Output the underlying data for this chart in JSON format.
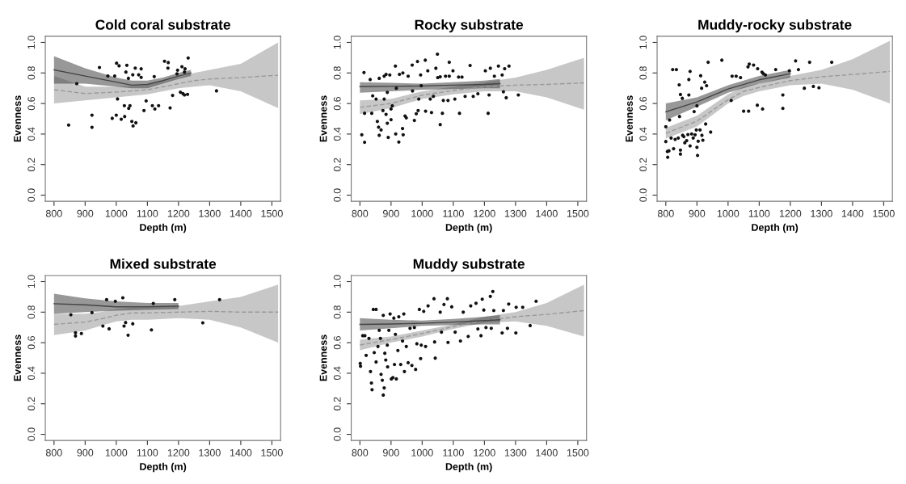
{
  "chart_data": [
    {
      "type": "scatter",
      "title": "Cold coral substrate",
      "xlabel": "Depth (m)",
      "ylabel": "Evenness",
      "xlim": [
        772,
        1528
      ],
      "ylim": [
        -0.04,
        1.04
      ],
      "xticks": [
        800,
        900,
        1000,
        1100,
        1200,
        1300,
        1400,
        1500
      ],
      "yticks": [
        {
          "value": 0,
          "label": "0.0"
        },
        {
          "value": 0.2,
          "label": "0.2"
        },
        {
          "value": 0.4,
          "label": "0.4"
        },
        {
          "value": 0.6,
          "label": "0.6"
        },
        {
          "value": 0.8,
          "label": "0.8"
        },
        {
          "value": 1,
          "label": "1.0"
        }
      ],
      "grid": false,
      "series": [
        {
          "type": "line",
          "line_style": "dashed",
          "color": "#999999",
          "x": [
            800,
            900,
            1000,
            1100,
            1200,
            1250,
            1300,
            1400,
            1520
          ],
          "values": [
            0.69,
            0.665,
            0.675,
            0.69,
            0.73,
            0.75,
            0.76,
            0.77,
            0.785
          ],
          "lower": [
            0.6,
            0.62,
            0.64,
            0.66,
            0.7,
            0.71,
            0.72,
            0.68,
            0.57
          ],
          "upper": [
            0.78,
            0.71,
            0.71,
            0.72,
            0.77,
            0.8,
            0.82,
            0.86,
            1.0
          ]
        },
        {
          "type": "line",
          "line_style": "solid",
          "color": "#444444",
          "x": [
            800,
            900,
            1000,
            1050,
            1100,
            1150,
            1200,
            1240
          ],
          "values": [
            0.82,
            0.78,
            0.74,
            0.72,
            0.725,
            0.75,
            0.78,
            0.8
          ],
          "lower": [
            0.73,
            0.73,
            0.71,
            0.7,
            0.7,
            0.73,
            0.76,
            0.78
          ],
          "upper": [
            0.91,
            0.83,
            0.77,
            0.75,
            0.75,
            0.77,
            0.8,
            0.82
          ]
        },
        {
          "type": "scatter",
          "marker": "circle",
          "color": "#111111",
          "x": [
            847,
            946,
            973,
            995,
            1001,
            1009,
            1034,
            1031,
            1061,
            1053,
            1039,
            1072,
            1080,
            1080,
            1122,
            1155,
            1167,
            1166,
            1197,
            1195,
            1211,
            1221,
            1219,
            1231,
            1206,
            1214,
            1219,
            1229,
            1322,
            873,
            922,
            922,
            987,
            1000,
            1004,
            1016,
            1027,
            1026,
            1040,
            1044,
            1050,
            1054,
            1063,
            1089,
            1096,
            1116,
            1124,
            1136,
            1173,
            1181
          ],
          "values": [
            0.459,
            0.836,
            0.78,
            0.78,
            0.864,
            0.847,
            0.85,
            0.806,
            0.832,
            0.788,
            0.765,
            0.788,
            0.827,
            0.771,
            0.776,
            0.877,
            0.868,
            0.832,
            0.818,
            0.794,
            0.841,
            0.827,
            0.806,
            0.898,
            0.674,
            0.665,
            0.656,
            0.66,
            0.683,
            0.73,
            0.524,
            0.444,
            0.503,
            0.524,
            0.63,
            0.497,
            0.515,
            0.586,
            0.568,
            0.586,
            0.483,
            0.453,
            0.474,
            0.554,
            0.617,
            0.586,
            0.564,
            0.586,
            0.571,
            0.653
          ]
        }
      ]
    },
    {
      "type": "scatter",
      "title": "Rocky substrate",
      "xlabel": "Depth (m)",
      "ylabel": "Evenness",
      "xlim": [
        772,
        1528
      ],
      "ylim": [
        -0.04,
        1.04
      ],
      "xticks": [
        800,
        900,
        1000,
        1100,
        1200,
        1300,
        1400,
        1500
      ],
      "yticks": [
        {
          "value": 0,
          "label": "0.0"
        },
        {
          "value": 0.2,
          "label": "0.2"
        },
        {
          "value": 0.4,
          "label": "0.4"
        },
        {
          "value": 0.6,
          "label": "0.6"
        },
        {
          "value": 0.8,
          "label": "0.8"
        },
        {
          "value": 1,
          "label": "1.0"
        }
      ],
      "grid": false,
      "series": [
        {
          "type": "line",
          "line_style": "dashed",
          "color": "#999999",
          "x": [
            800,
            900,
            1000,
            1100,
            1200,
            1300,
            1400,
            1520
          ],
          "values": [
            0.575,
            0.6,
            0.655,
            0.685,
            0.71,
            0.72,
            0.725,
            0.735
          ],
          "lower": [
            0.53,
            0.57,
            0.63,
            0.66,
            0.68,
            0.68,
            0.64,
            0.56
          ],
          "upper": [
            0.62,
            0.63,
            0.68,
            0.71,
            0.74,
            0.77,
            0.82,
            0.9
          ]
        },
        {
          "type": "line",
          "line_style": "solid",
          "color": "#444444",
          "x": [
            800,
            900,
            1000,
            1100,
            1200,
            1250
          ],
          "values": [
            0.71,
            0.712,
            0.715,
            0.72,
            0.725,
            0.73
          ],
          "lower": [
            0.67,
            0.68,
            0.69,
            0.695,
            0.7,
            0.7
          ],
          "upper": [
            0.74,
            0.735,
            0.73,
            0.74,
            0.75,
            0.76
          ]
        },
        {
          "type": "scatter",
          "marker": "circle",
          "color": "#111111",
          "x": [
            813,
            833,
            806,
            815,
            815,
            838,
            841,
            852,
            856,
            860,
            862,
            868,
            862,
            878,
            884,
            896,
            888,
            878,
            874,
            884,
            888,
            891,
            900,
            900,
            904,
            914,
            917,
            915,
            925,
            927,
            938,
            937,
            939,
            945,
            949,
            955,
            968,
            969,
            975,
            981,
            985,
            987,
            989,
            995,
            997,
            1010,
            1011,
            1018,
            1026,
            1030,
            1036,
            1044,
            1049,
            1050,
            1058,
            1058,
            1065,
            1068,
            1075,
            1087,
            1087,
            1083,
            1099,
            1105,
            1117,
            1120,
            1128,
            1138,
            1154,
            1164,
            1179,
            1203,
            1212,
            1219,
            1215,
            1232,
            1245,
            1257,
            1261,
            1265,
            1270,
            1279,
            1309
          ],
          "values": [
            0.803,
            0.757,
            0.395,
            0.346,
            0.536,
            0.536,
            0.65,
            0.629,
            0.483,
            0.445,
            0.392,
            0.427,
            0.765,
            0.779,
            0.791,
            0.787,
            0.673,
            0.629,
            0.554,
            0.529,
            0.471,
            0.378,
            0.494,
            0.564,
            0.585,
            0.845,
            0.7,
            0.401,
            0.348,
            0.791,
            0.8,
            0.436,
            0.395,
            0.518,
            0.506,
            0.779,
            0.852,
            0.682,
            0.489,
            0.533,
            0.875,
            0.554,
            0.629,
            0.787,
            0.717,
            0.884,
            0.55,
            0.814,
            0.629,
            0.541,
            0.647,
            0.831,
            0.923,
            0.77,
            0.775,
            0.462,
            0.536,
            0.62,
            0.779,
            0.87,
            0.779,
            0.62,
            0.814,
            0.629,
            0.773,
            0.536,
            0.773,
            0.647,
            0.849,
            0.647,
            0.664,
            0.814,
            0.536,
            0.831,
            0.656,
            0.779,
            0.845,
            0.787,
            0.677,
            0.828,
            0.638,
            0.845,
            0.656
          ]
        }
      ]
    },
    {
      "type": "scatter",
      "title": "Muddy-rocky substrate",
      "xlabel": "Depth (m)",
      "ylabel": "Evenness",
      "xlim": [
        772,
        1528
      ],
      "ylim": [
        -0.04,
        1.04
      ],
      "xticks": [
        800,
        900,
        1000,
        1100,
        1200,
        1300,
        1400,
        1500
      ],
      "yticks": [
        {
          "value": 0,
          "label": "0.0"
        },
        {
          "value": 0.2,
          "label": "0.2"
        },
        {
          "value": 0.4,
          "label": "0.4"
        },
        {
          "value": 0.6,
          "label": "0.6"
        },
        {
          "value": 0.8,
          "label": "0.8"
        },
        {
          "value": 1,
          "label": "1.0"
        }
      ],
      "grid": false,
      "series": [
        {
          "type": "line",
          "line_style": "dashed",
          "color": "#999999",
          "x": [
            800,
            900,
            1000,
            1050,
            1100,
            1200,
            1300,
            1400,
            1520
          ],
          "values": [
            0.405,
            0.485,
            0.625,
            0.68,
            0.705,
            0.75,
            0.775,
            0.79,
            0.81
          ],
          "lower": [
            0.37,
            0.45,
            0.6,
            0.65,
            0.68,
            0.72,
            0.73,
            0.69,
            0.6
          ],
          "upper": [
            0.44,
            0.52,
            0.66,
            0.71,
            0.73,
            0.78,
            0.82,
            0.89,
            1.01
          ]
        },
        {
          "type": "line",
          "line_style": "solid",
          "color": "#444444",
          "x": [
            800,
            900,
            1000,
            1100,
            1200
          ],
          "values": [
            0.545,
            0.61,
            0.695,
            0.755,
            0.795
          ],
          "lower": [
            0.49,
            0.58,
            0.67,
            0.73,
            0.77
          ],
          "upper": [
            0.6,
            0.64,
            0.72,
            0.78,
            0.82
          ]
        },
        {
          "type": "scatter",
          "marker": "circle",
          "color": "#111111",
          "x": [
            800,
            800,
            805,
            806,
            810,
            812,
            817,
            822,
            825,
            834,
            830,
            840,
            843,
            844,
            847,
            847,
            847,
            853,
            854,
            858,
            861,
            867,
            871,
            874,
            878,
            874,
            878,
            883,
            888,
            891,
            894,
            898,
            900,
            900,
            902,
            904,
            910,
            912,
            915,
            916,
            919,
            925,
            928,
            931,
            936,
            944,
            980,
            1013,
            1026,
            1040,
            1010,
            1050,
            1066,
            1064,
            1068,
            1082,
            1095,
            1094,
            1109,
            1113,
            1111,
            1120,
            1153,
            1176,
            1176,
            1197,
            1217,
            1226,
            1262,
            1245,
            1274,
            1292,
            1333
          ],
          "values": [
            0.448,
            0.351,
            0.286,
            0.248,
            0.29,
            0.492,
            0.374,
            0.822,
            0.304,
            0.822,
            0.365,
            0.374,
            0.722,
            0.515,
            0.659,
            0.295,
            0.269,
            0.634,
            0.392,
            0.383,
            0.343,
            0.357,
            0.397,
            0.757,
            0.81,
            0.656,
            0.322,
            0.401,
            0.374,
            0.547,
            0.395,
            0.427,
            0.585,
            0.313,
            0.26,
            0.353,
            0.427,
            0.782,
            0.7,
            0.392,
            0.36,
            0.74,
            0.466,
            0.717,
            0.87,
            0.413,
            0.884,
            0.779,
            0.779,
            0.77,
            0.62,
            0.55,
            0.55,
            0.84,
            0.858,
            0.852,
            0.828,
            0.589,
            0.805,
            0.796,
            0.564,
            0.787,
            0.822,
            0.656,
            0.568,
            0.814,
            0.879,
            0.822,
            0.87,
            0.7,
            0.712,
            0.703,
            0.87
          ]
        }
      ]
    },
    {
      "type": "scatter",
      "title": "Mixed substrate",
      "xlabel": "Depth (m)",
      "ylabel": "Evenness",
      "xlim": [
        772,
        1528
      ],
      "ylim": [
        -0.04,
        1.04
      ],
      "xticks": [
        800,
        900,
        1000,
        1100,
        1200,
        1300,
        1400,
        1500
      ],
      "yticks": [
        {
          "value": 0,
          "label": "0.0"
        },
        {
          "value": 0.2,
          "label": "0.2"
        },
        {
          "value": 0.4,
          "label": "0.4"
        },
        {
          "value": 0.6,
          "label": "0.6"
        },
        {
          "value": 0.8,
          "label": "0.8"
        },
        {
          "value": 1,
          "label": "1.0"
        }
      ],
      "grid": false,
      "series": [
        {
          "type": "line",
          "line_style": "dashed",
          "color": "#999999",
          "x": [
            800,
            900,
            950,
            1000,
            1050,
            1100,
            1200,
            1300,
            1400,
            1520
          ],
          "values": [
            0.72,
            0.735,
            0.755,
            0.78,
            0.795,
            0.795,
            0.8,
            0.805,
            0.8,
            0.8
          ],
          "lower": [
            0.65,
            0.68,
            0.71,
            0.74,
            0.75,
            0.75,
            0.76,
            0.75,
            0.7,
            0.6
          ],
          "upper": [
            0.79,
            0.79,
            0.8,
            0.82,
            0.83,
            0.83,
            0.84,
            0.87,
            0.9,
            0.98
          ]
        },
        {
          "type": "line",
          "line_style": "solid",
          "color": "#444444",
          "x": [
            800,
            900,
            1000,
            1100,
            1200
          ],
          "values": [
            0.855,
            0.848,
            0.835,
            0.835,
            0.84
          ],
          "lower": [
            0.79,
            0.8,
            0.81,
            0.815,
            0.82
          ],
          "upper": [
            0.92,
            0.89,
            0.87,
            0.86,
            0.86
          ]
        },
        {
          "type": "scatter",
          "marker": "circle",
          "color": "#111111",
          "x": [
            854,
            869,
            869,
            888,
            922,
            957,
            969,
            977,
            997,
            1021,
            1025,
            1030,
            1038,
            1053,
            1113,
            1119,
            1188,
            1278,
            1332
          ],
          "values": [
            0.783,
            0.665,
            0.644,
            0.66,
            0.797,
            0.709,
            0.882,
            0.691,
            0.871,
            0.894,
            0.709,
            0.732,
            0.649,
            0.724,
            0.684,
            0.857,
            0.882,
            0.73,
            0.882
          ]
        }
      ]
    },
    {
      "type": "scatter",
      "title": "Muddy substrate",
      "xlabel": "Depth (m)",
      "ylabel": "Evenness",
      "xlim": [
        772,
        1528
      ],
      "ylim": [
        -0.04,
        1.04
      ],
      "xticks": [
        800,
        900,
        1000,
        1100,
        1200,
        1300,
        1400,
        1500
      ],
      "yticks": [
        {
          "value": 0,
          "label": "0.0"
        },
        {
          "value": 0.2,
          "label": "0.2"
        },
        {
          "value": 0.4,
          "label": "0.4"
        },
        {
          "value": 0.6,
          "label": "0.6"
        },
        {
          "value": 0.8,
          "label": "0.8"
        },
        {
          "value": 1,
          "label": "1.0"
        }
      ],
      "grid": false,
      "series": [
        {
          "type": "line",
          "line_style": "dashed",
          "color": "#999999",
          "x": [
            800,
            900,
            1000,
            1100,
            1200,
            1300,
            1400,
            1520
          ],
          "values": [
            0.585,
            0.62,
            0.66,
            0.705,
            0.745,
            0.77,
            0.785,
            0.81
          ],
          "lower": [
            0.55,
            0.6,
            0.64,
            0.69,
            0.73,
            0.74,
            0.71,
            0.64
          ],
          "upper": [
            0.62,
            0.64,
            0.68,
            0.72,
            0.77,
            0.8,
            0.86,
            0.98
          ]
        },
        {
          "type": "line",
          "line_style": "solid",
          "color": "#444444",
          "x": [
            800,
            900,
            1000,
            1100,
            1200,
            1250
          ],
          "values": [
            0.72,
            0.722,
            0.727,
            0.735,
            0.745,
            0.75
          ],
          "lower": [
            0.68,
            0.695,
            0.71,
            0.715,
            0.72,
            0.72
          ],
          "upper": [
            0.76,
            0.75,
            0.745,
            0.755,
            0.77,
            0.78
          ]
        },
        {
          "type": "scatter",
          "marker": "circle",
          "color": "#111111",
          "x": [
            801,
            802,
            809,
            816,
            820,
            829,
            834,
            837,
            839,
            843,
            852,
            846,
            852,
            858,
            862,
            866,
            868,
            872,
            875,
            878,
            875,
            880,
            883,
            888,
            889,
            893,
            897,
            901,
            906,
            909,
            911,
            914,
            917,
            922,
            925,
            931,
            937,
            941,
            943,
            949,
            955,
            961,
            967,
            975,
            979,
            983,
            991,
            995,
            997,
            1005,
            1011,
            1019,
            1038,
            1040,
            1042,
            1058,
            1062,
            1070,
            1083,
            1081,
            1095,
            1106,
            1123,
            1132,
            1148,
            1156,
            1173,
            1179,
            1189,
            1193,
            1198,
            1205,
            1219,
            1227,
            1222,
            1230,
            1257,
            1261,
            1274,
            1278,
            1301,
            1302,
            1323,
            1347,
            1366
          ],
          "values": [
            0.464,
            0.446,
            0.646,
            0.646,
            0.517,
            0.628,
            0.411,
            0.336,
            0.292,
            0.818,
            0.818,
            0.535,
            0.474,
            0.575,
            0.681,
            0.628,
            0.393,
            0.354,
            0.257,
            0.304,
            0.779,
            0.531,
            0.487,
            0.584,
            0.442,
            0.681,
            0.788,
            0.363,
            0.372,
            0.761,
            0.457,
            0.655,
            0.363,
            0.549,
            0.77,
            0.457,
            0.611,
            0.788,
            0.411,
            0.575,
            0.469,
            0.694,
            0.451,
            0.699,
            0.425,
            0.593,
            0.818,
            0.496,
            0.584,
            0.805,
            0.575,
            0.841,
            0.888,
            0.605,
            0.499,
            0.8,
            0.669,
            0.85,
            0.602,
            0.888,
            0.835,
            0.669,
            0.611,
            0.8,
            0.641,
            0.841,
            0.858,
            0.69,
            0.646,
            0.885,
            0.814,
            0.699,
            0.903,
            0.935,
            0.694,
            0.811,
            0.664,
            0.811,
            0.694,
            0.853,
            0.664,
            0.832,
            0.832,
            0.712,
            0.871
          ]
        }
      ]
    }
  ]
}
